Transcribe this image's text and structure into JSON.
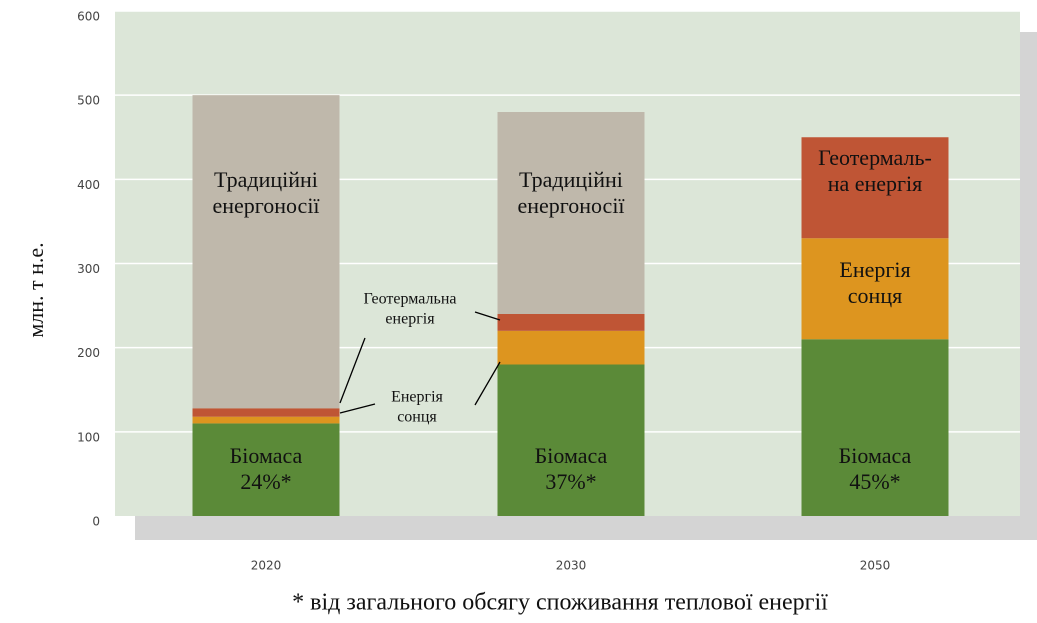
{
  "chart_data": {
    "type": "stacked_bar",
    "y_label": "млн. т н.е.",
    "categories": [
      "2020",
      "2030",
      "2050"
    ],
    "series": [
      {
        "name": "Біомаса",
        "color": "#5b8a38",
        "values": [
          110,
          180,
          210
        ]
      },
      {
        "name": "Енергія сонця",
        "color": "#dd951f",
        "values": [
          8,
          40,
          120
        ]
      },
      {
        "name": "Геотермальна енергія",
        "color": "#bf5535",
        "values": [
          10,
          20,
          120
        ]
      },
      {
        "name": "Традиційні енергоносії",
        "color": "#bfb8ab",
        "values": [
          372,
          240,
          0
        ]
      }
    ],
    "ylim": [
      0,
      600
    ],
    "yticks": [
      0,
      100,
      200,
      300,
      400,
      500,
      600
    ],
    "grid": true,
    "annotations": [
      {
        "lines": [
          "Традиційні",
          "енергоносії"
        ]
      },
      {
        "lines": [
          "Традиційні",
          "енергоносії"
        ]
      },
      {
        "lines": [
          "Геотермаль-",
          "на енергія"
        ]
      },
      {
        "lines": [
          "Енергія",
          "сонця"
        ]
      },
      {
        "lines": [
          "Біомаса",
          "24%*"
        ]
      },
      {
        "lines": [
          "Біомаса",
          "37%*"
        ]
      },
      {
        "lines": [
          "Біомаса",
          "45%*"
        ]
      },
      {
        "lines": [
          "Геотермальна",
          "енергія"
        ]
      },
      {
        "lines": [
          "Енергія",
          "сонця"
        ]
      }
    ],
    "footnote": "* від загального обсягу споживання теплової енергії"
  }
}
